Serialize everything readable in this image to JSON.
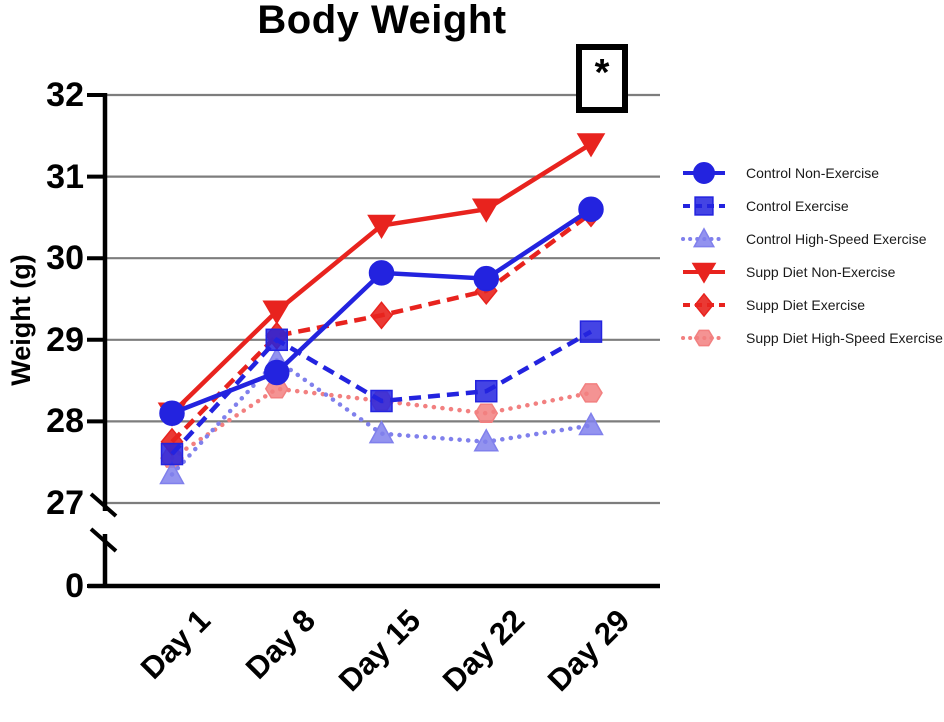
{
  "title": "Body Weight",
  "significance_marker": "*",
  "y_axis": {
    "label": "Weight (g)",
    "tick_labels": [
      "32",
      "31",
      "30",
      "29",
      "28",
      "27"
    ],
    "broken_axis_zero_label": "0"
  },
  "x_axis": {
    "tick_labels": [
      "Day 1",
      "Day 8",
      "Day 15",
      "Day 22",
      "Day 29"
    ]
  },
  "colors": {
    "grid": "#7D7D7D",
    "axis": "#000000",
    "blue": "#2323DF",
    "light_blue": "#8080EC",
    "red": "#E8231E",
    "light_red": "#F28080"
  },
  "chart_data": {
    "type": "line",
    "title": "Body Weight",
    "xlabel": "",
    "ylabel": "Weight (g)",
    "categories": [
      "Day 1",
      "Day 8",
      "Day 15",
      "Day 22",
      "Day 29"
    ],
    "y_ticks": [
      32,
      31,
      30,
      29,
      28,
      27
    ],
    "ylim_display": [
      27,
      32
    ],
    "axis_break_to_zero": true,
    "grid": true,
    "legend_position": "right",
    "annotation": {
      "text": "*",
      "x_category": "Day 29",
      "boxed": true,
      "meaning": "significance marker"
    },
    "series": [
      {
        "name": "Control Non-Exercise",
        "color": "#2323DF",
        "line_style": "solid",
        "marker": "circle",
        "marker_opacity": 1,
        "values": [
          28.1,
          28.6,
          29.82,
          29.75,
          30.6
        ]
      },
      {
        "name": "Control Exercise",
        "color": "#2323DF",
        "line_style": "dashed",
        "marker": "square",
        "marker_opacity": 0.85,
        "values": [
          27.6,
          29.0,
          28.25,
          28.37,
          29.1
        ]
      },
      {
        "name": "Control High-Speed Exercise",
        "color": "#8080EC",
        "line_style": "dotted",
        "marker": "triangle-up",
        "marker_opacity": 0.85,
        "values": [
          27.35,
          28.75,
          27.85,
          27.75,
          27.95
        ]
      },
      {
        "name": "Supp Diet Non-Exercise",
        "color": "#E8231E",
        "line_style": "solid",
        "marker": "triangle-down",
        "marker_opacity": 1,
        "values": [
          28.1,
          29.35,
          30.4,
          30.6,
          31.4
        ]
      },
      {
        "name": "Supp Diet Exercise",
        "color": "#E8231E",
        "line_style": "dashed",
        "marker": "diamond",
        "marker_opacity": 0.9,
        "values": [
          27.75,
          29.05,
          29.3,
          29.6,
          30.55
        ]
      },
      {
        "name": "Supp Diet High-Speed Exercise",
        "color": "#F28080",
        "line_style": "dotted",
        "marker": "hexagon",
        "marker_opacity": 0.85,
        "values": [
          27.55,
          28.4,
          28.25,
          28.1,
          28.35
        ]
      }
    ],
    "draw_order": [
      5,
      2,
      4,
      3,
      1,
      0
    ]
  }
}
